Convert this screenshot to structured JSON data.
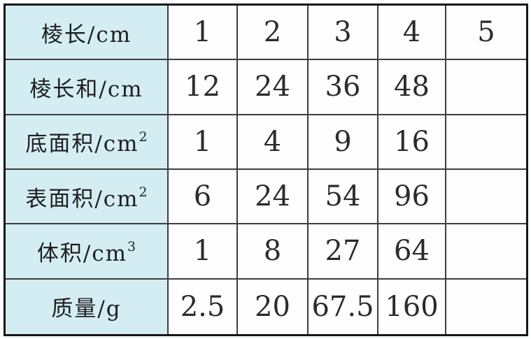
{
  "chart_data": {
    "type": "table",
    "title": "",
    "row_headers": [
      "棱长/cm",
      "棱长和/cm",
      "底面积/cm²",
      "表面积/cm²",
      "体积/cm³",
      "质量/g"
    ],
    "rows": [
      [
        "1",
        "2",
        "3",
        "4",
        "5"
      ],
      [
        "12",
        "24",
        "36",
        "48",
        ""
      ],
      [
        "1",
        "4",
        "9",
        "16",
        ""
      ],
      [
        "6",
        "24",
        "54",
        "96",
        ""
      ],
      [
        "1",
        "8",
        "27",
        "64",
        ""
      ],
      [
        "2.5",
        "20",
        "67.5",
        "160",
        ""
      ]
    ]
  },
  "table": {
    "rows": [
      {
        "label": "棱长/cm",
        "sup": "",
        "values": [
          "1",
          "2",
          "3",
          "4",
          "5"
        ]
      },
      {
        "label": "棱长和/cm",
        "sup": "",
        "values": [
          "12",
          "24",
          "36",
          "48",
          ""
        ]
      },
      {
        "label": "底面积/cm",
        "sup": "2",
        "values": [
          "1",
          "4",
          "9",
          "16",
          ""
        ]
      },
      {
        "label": "表面积/cm",
        "sup": "2",
        "values": [
          "6",
          "24",
          "54",
          "96",
          ""
        ]
      },
      {
        "label": "体积/cm",
        "sup": "3",
        "values": [
          "1",
          "8",
          "27",
          "64",
          ""
        ]
      },
      {
        "label": "质量/g",
        "sup": "",
        "values": [
          "2.5",
          "20",
          "67.5",
          "160",
          ""
        ]
      }
    ]
  },
  "colors": {
    "label_background": "#d4edf3",
    "grid_line": "#3e3e3e",
    "outer_border": "#161616",
    "value_text": "#2b2b2b",
    "label_text": "#1f1f1f"
  }
}
